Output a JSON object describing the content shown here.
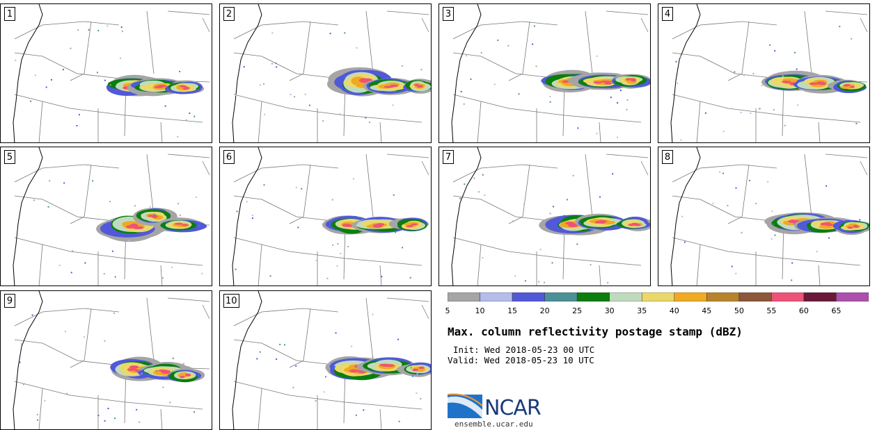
{
  "panels": [
    {
      "label": "1",
      "cluster": "c1"
    },
    {
      "label": "2",
      "cluster": "c2"
    },
    {
      "label": "3",
      "cluster": "c3"
    },
    {
      "label": "4",
      "cluster": "c4"
    },
    {
      "label": "5",
      "cluster": "c5"
    },
    {
      "label": "6",
      "cluster": "c6"
    },
    {
      "label": "7",
      "cluster": "c7"
    },
    {
      "label": "8",
      "cluster": "c8"
    },
    {
      "label": "9",
      "cluster": "c9"
    },
    {
      "label": "10",
      "cluster": "c10"
    }
  ],
  "colorbar": {
    "ticks": [
      "5",
      "10",
      "15",
      "20",
      "25",
      "30",
      "35",
      "40",
      "45",
      "50",
      "55",
      "60",
      "65"
    ],
    "colors": [
      "#a5a5a5",
      "#b4bce9",
      "#5159d8",
      "#4b9197",
      "#0b7e0f",
      "#bfdbbf",
      "#ebd86a",
      "#f0a922",
      "#b8832d",
      "#8c573b",
      "#ee5377",
      "#6b1938",
      "#ad50ac"
    ]
  },
  "title": "Max. column reflectivity postage stamp (dBZ)",
  "init_text": "Init: Wed 2018-05-23 00 UTC",
  "valid_text": "Valid: Wed 2018-05-23 10 UTC",
  "logo": {
    "name": "NCAR",
    "url": "ensemble.ucar.edu"
  }
}
